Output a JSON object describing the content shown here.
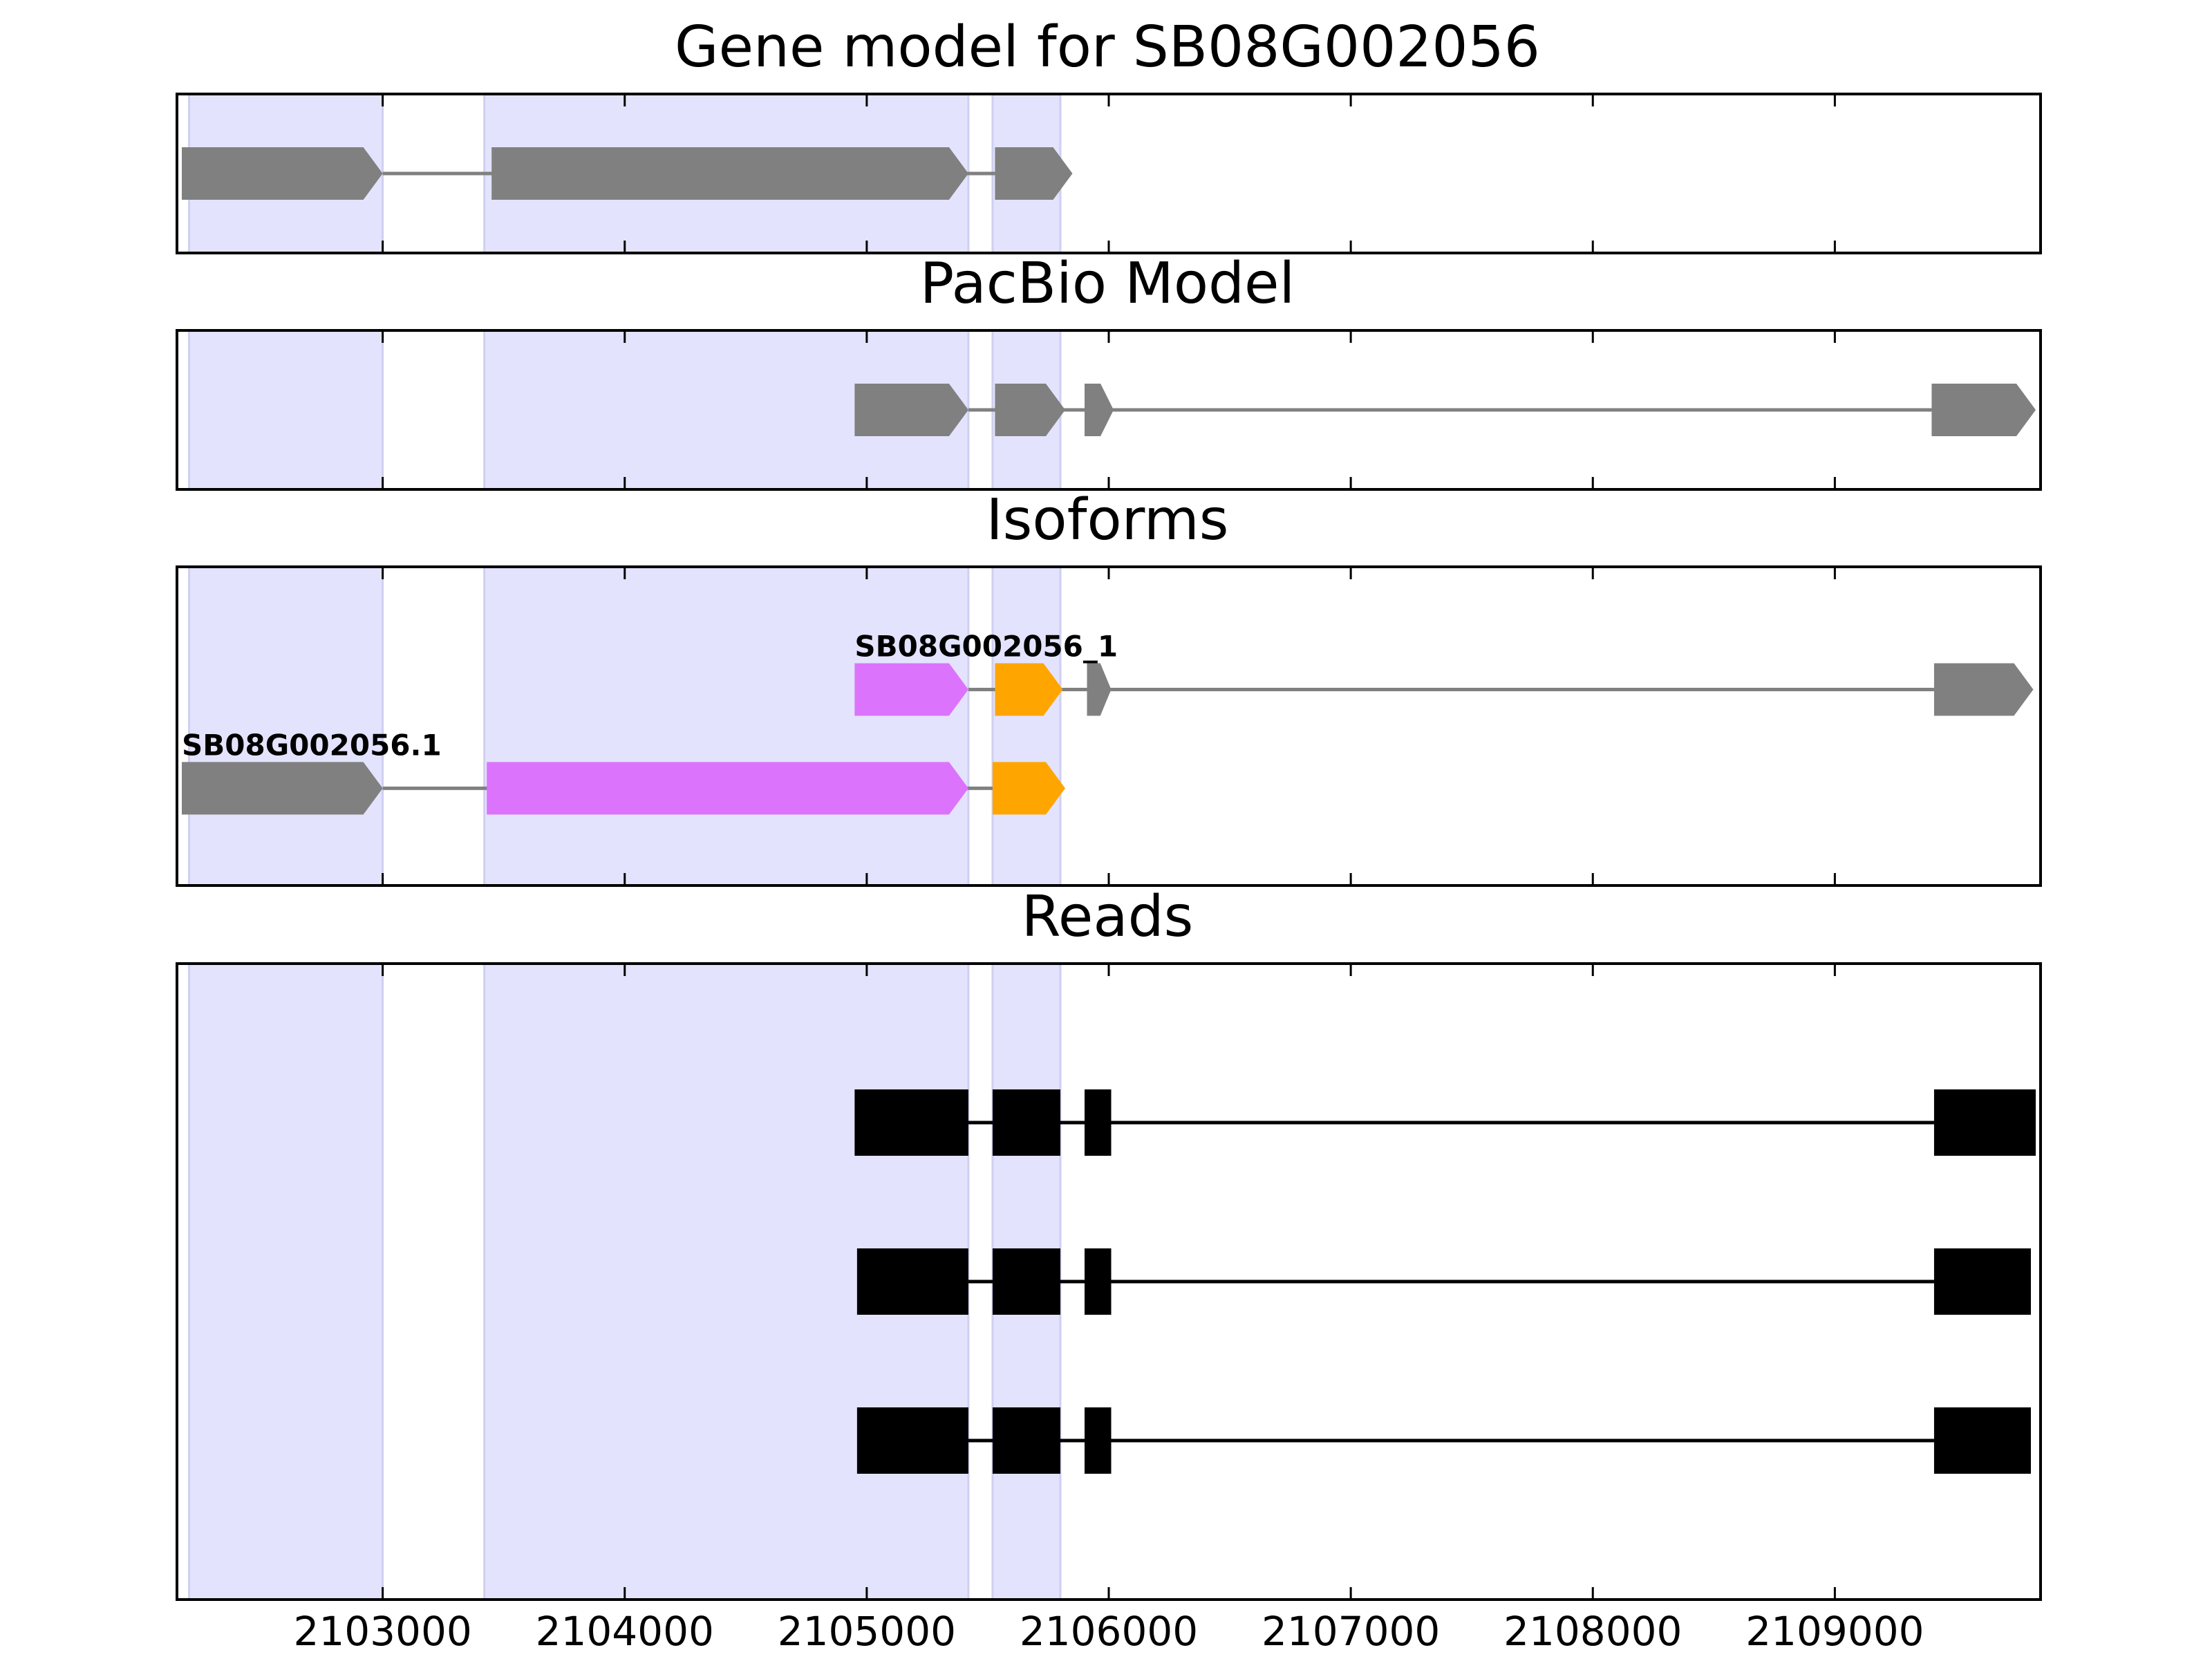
{
  "chart_data": {
    "type": "gene-structure",
    "x_ticks": [
      2103000,
      2104000,
      2105000,
      2106000,
      2107000,
      2108000,
      2109000
    ],
    "xlim": [
      2102150,
      2109850
    ],
    "highlight_regions": [
      [
        2102200,
        2103000
      ],
      [
        2103420,
        2105420
      ],
      [
        2105520,
        2105800
      ]
    ],
    "colors": {
      "highlight": "#e3e3fd",
      "highlight_edge": "#cfcff0",
      "gene_feature": "#808080",
      "intron": "#808080",
      "magenta": "#dc73fc",
      "orange": "#ffa500",
      "read": "#000000"
    },
    "panels": [
      {
        "id": "gene-model",
        "title": "Gene model for SB08G002056",
        "tracks": [
          {
            "label": "",
            "y": 0.5,
            "exons": [
              {
                "start": 2102170,
                "end": 2103000,
                "color": "gene_feature",
                "shape": "arrow"
              },
              {
                "start": 2103450,
                "end": 2105420,
                "color": "gene_feature",
                "shape": "arrow"
              },
              {
                "start": 2105530,
                "end": 2105850,
                "color": "gene_feature",
                "shape": "arrow"
              }
            ]
          }
        ]
      },
      {
        "id": "pacbio-model",
        "title": "PacBio Model",
        "tracks": [
          {
            "label": "",
            "y": 0.5,
            "exons": [
              {
                "start": 2104950,
                "end": 2105420,
                "color": "gene_feature",
                "shape": "arrow"
              },
              {
                "start": 2105530,
                "end": 2105820,
                "color": "gene_feature",
                "shape": "arrow"
              },
              {
                "start": 2105900,
                "end": 2106020,
                "color": "gene_feature",
                "shape": "arrow"
              },
              {
                "start": 2109400,
                "end": 2109830,
                "color": "gene_feature",
                "shape": "arrow"
              }
            ]
          }
        ]
      },
      {
        "id": "isoforms",
        "title": "Isoforms",
        "tracks": [
          {
            "label": "SB08G002056_1",
            "y": 0.615,
            "exons": [
              {
                "start": 2104950,
                "end": 2105420,
                "color": "magenta",
                "shape": "arrow"
              },
              {
                "start": 2105530,
                "end": 2105810,
                "color": "orange",
                "shape": "arrow"
              },
              {
                "start": 2105910,
                "end": 2106010,
                "color": "gene_feature",
                "shape": "arrow"
              },
              {
                "start": 2109410,
                "end": 2109820,
                "color": "gene_feature",
                "shape": "arrow"
              }
            ]
          },
          {
            "label": "SB08G002056.1",
            "y": 0.305,
            "exons": [
              {
                "start": 2102170,
                "end": 2103000,
                "color": "gene_feature",
                "shape": "arrow"
              },
              {
                "start": 2103430,
                "end": 2105420,
                "color": "magenta",
                "shape": "arrow"
              },
              {
                "start": 2105520,
                "end": 2105820,
                "color": "orange",
                "shape": "arrow"
              }
            ]
          }
        ]
      },
      {
        "id": "reads",
        "title": "Reads",
        "tracks": [
          {
            "label": "",
            "y": 0.75,
            "exons": [
              {
                "start": 2104950,
                "end": 2105420,
                "color": "read",
                "shape": "box"
              },
              {
                "start": 2105520,
                "end": 2105800,
                "color": "read",
                "shape": "box"
              },
              {
                "start": 2105900,
                "end": 2106010,
                "color": "read",
                "shape": "box"
              },
              {
                "start": 2109410,
                "end": 2109830,
                "color": "read",
                "shape": "box"
              }
            ]
          },
          {
            "label": "",
            "y": 0.5,
            "exons": [
              {
                "start": 2104960,
                "end": 2105420,
                "color": "read",
                "shape": "box"
              },
              {
                "start": 2105520,
                "end": 2105800,
                "color": "read",
                "shape": "box"
              },
              {
                "start": 2105900,
                "end": 2106010,
                "color": "read",
                "shape": "box"
              },
              {
                "start": 2109410,
                "end": 2109810,
                "color": "read",
                "shape": "box"
              }
            ]
          },
          {
            "label": "",
            "y": 0.25,
            "exons": [
              {
                "start": 2104960,
                "end": 2105420,
                "color": "read",
                "shape": "box"
              },
              {
                "start": 2105520,
                "end": 2105800,
                "color": "read",
                "shape": "box"
              },
              {
                "start": 2105900,
                "end": 2106010,
                "color": "read",
                "shape": "box"
              },
              {
                "start": 2109410,
                "end": 2109810,
                "color": "read",
                "shape": "box"
              }
            ]
          }
        ]
      }
    ]
  }
}
